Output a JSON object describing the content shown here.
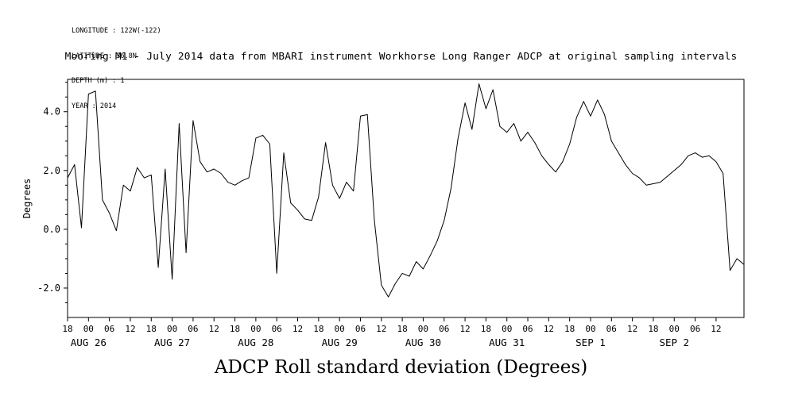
{
  "header": {
    "longitude": "LONGITUDE : 122W(-122)",
    "latitude": "LATITUDE : 36.8N",
    "depth": "DEPTH (m) : 1",
    "year": "YEAR : 2014"
  },
  "chart_data": {
    "type": "line",
    "title": "Mooring M1 - July 2014 data from MBARI instrument Workhorse Long Ranger ADCP at original sampling intervals",
    "caption": "ADCP Roll standard deviation (Degrees)",
    "ylabel": "Degrees",
    "xlabel": "",
    "series_name": "ADCP Roll standard deviation (Degrees)",
    "start": "2014-08-25 18:00",
    "sample_interval_hours": 2,
    "values": [
      1.75,
      2.2,
      0.05,
      4.6,
      4.7,
      1.0,
      0.55,
      -0.05,
      1.5,
      1.3,
      2.1,
      1.75,
      1.85,
      -1.3,
      2.05,
      -1.7,
      3.6,
      -0.8,
      3.7,
      2.3,
      1.95,
      2.05,
      1.9,
      1.6,
      1.5,
      1.65,
      1.75,
      3.1,
      3.2,
      2.9,
      -1.5,
      2.6,
      0.9,
      0.65,
      0.35,
      0.3,
      1.1,
      2.95,
      1.5,
      1.05,
      1.6,
      1.3,
      3.85,
      3.9,
      0.3,
      -1.9,
      -2.3,
      -1.85,
      -1.5,
      -1.6,
      -1.1,
      -1.35,
      -0.9,
      -0.4,
      0.3,
      1.4,
      3.1,
      4.3,
      3.4,
      4.95,
      4.1,
      4.75,
      3.5,
      3.3,
      3.6,
      3.0,
      3.3,
      2.95,
      2.5,
      2.2,
      1.95,
      2.3,
      2.9,
      3.8,
      4.35,
      3.85,
      4.4,
      3.9,
      3.0,
      2.6,
      2.2,
      1.9,
      1.75,
      1.5,
      1.55,
      1.6,
      1.8,
      2.0,
      2.2,
      2.5,
      2.6,
      2.45,
      2.5,
      2.3,
      1.9,
      -1.4,
      -1.0,
      -1.2
    ],
    "ylim": [
      -3.0,
      5.1
    ],
    "y_ticks": [
      -2.0,
      0.0,
      2.0,
      4.0
    ],
    "y_tick_labels": [
      "-2.0",
      "0.0",
      "2.0",
      "4.0"
    ],
    "y_minor_tick_step": 0.5,
    "x_hour_tick_step_hours": 6,
    "x_hour_tick_labels": [
      "18",
      "00",
      "06",
      "12",
      "18",
      "00",
      "06",
      "12",
      "18",
      "00",
      "06",
      "12",
      "18",
      "00",
      "06",
      "12",
      "18",
      "00",
      "06",
      "12",
      "18",
      "00",
      "06",
      "12",
      "18",
      "00",
      "06",
      "12",
      "18",
      "00",
      "06",
      "12"
    ],
    "x_date_labels": [
      "AUG 26",
      "AUG 27",
      "AUG 28",
      "AUG 29",
      "AUG 30",
      "AUG 31",
      "SEP 1",
      "SEP 2"
    ],
    "x_date_tick_hours": [
      6,
      30,
      54,
      78,
      102,
      126,
      150,
      174
    ],
    "line_color": "#000000",
    "background": "#ffffff",
    "grid": false,
    "legend": false
  }
}
